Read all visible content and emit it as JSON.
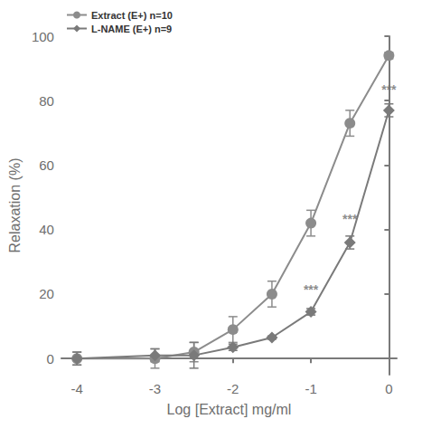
{
  "chart_data": {
    "type": "line",
    "x_label": "Log [Extract] mg/ml",
    "y_label": "Relaxation (%)",
    "xlim": [
      -4.2,
      0.1
    ],
    "xticks": [
      -4,
      -3,
      -2,
      -1,
      0
    ],
    "ylim": [
      -5,
      100
    ],
    "yticks": [
      0,
      20,
      40,
      60,
      80,
      100
    ],
    "grid": false,
    "legend": "top-left",
    "x": [
      -4,
      -3,
      -2.5,
      -2,
      -1.5,
      -1,
      -0.5,
      0
    ],
    "series": [
      {
        "name": "Extract (E+) n=10",
        "color": "#8c8c8c",
        "marker": "circle",
        "values": [
          0,
          0,
          2,
          9,
          20,
          42,
          73,
          94
        ],
        "errors": [
          2,
          3,
          3,
          4,
          4,
          4,
          4,
          1
        ]
      },
      {
        "name": "L-NAME (E+) n=9",
        "color": "#7a7a7a",
        "marker": "diamond",
        "values": [
          0,
          1,
          1,
          3.5,
          6.5,
          14.5,
          36,
          77
        ],
        "errors": [
          2,
          2,
          4,
          1,
          0.5,
          1,
          2,
          2
        ]
      }
    ],
    "annotations": [
      {
        "text": "***",
        "x": -1,
        "y": 18
      },
      {
        "text": "***",
        "x": -0.5,
        "y": 40
      },
      {
        "text": "***",
        "x": 0,
        "y": 80
      }
    ]
  }
}
